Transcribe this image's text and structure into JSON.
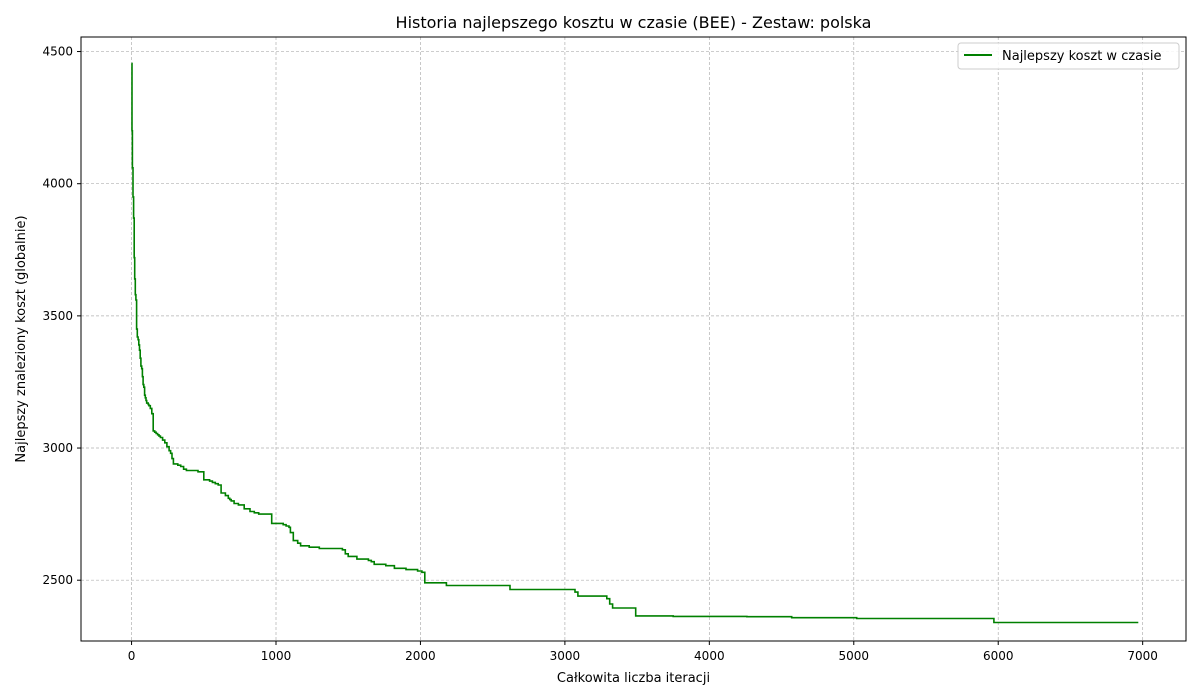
{
  "chart_data": {
    "type": "line",
    "title": "Historia najlepszego kosztu w czasie (BEE) - Zestaw: polska",
    "xlabel": "Całkowita liczba iteracji",
    "ylabel": "Najlepszy znaleziony koszt (globalnie)",
    "xlim": [
      -350,
      7300
    ],
    "ylim": [
      2270,
      4555
    ],
    "xticks": [
      0,
      1000,
      2000,
      3000,
      4000,
      5000,
      6000,
      7000
    ],
    "yticks": [
      2500,
      3000,
      3500,
      4000,
      4500
    ],
    "grid": true,
    "legend_position": "top-right",
    "series": [
      {
        "name": "Najlepszy koszt w czasie",
        "color": "#008000",
        "step": true,
        "x": [
          0,
          3,
          6,
          10,
          14,
          18,
          22,
          26,
          30,
          35,
          40,
          45,
          50,
          55,
          60,
          65,
          70,
          75,
          80,
          85,
          90,
          95,
          100,
          105,
          110,
          115,
          120,
          130,
          140,
          150,
          160,
          170,
          180,
          185,
          190,
          200,
          215,
          230,
          245,
          260,
          270,
          280,
          290,
          300,
          320,
          340,
          360,
          380,
          400,
          430,
          460,
          500,
          540,
          560,
          580,
          600,
          620,
          650,
          670,
          680,
          690,
          710,
          740,
          780,
          820,
          850,
          880,
          970,
          1050,
          1070,
          1090,
          1100,
          1120,
          1150,
          1170,
          1230,
          1300,
          1460,
          1480,
          1500,
          1560,
          1640,
          1660,
          1680,
          1760,
          1820,
          1900,
          1980,
          2010,
          2030,
          2180,
          2620,
          3070,
          3090,
          3290,
          3310,
          3330,
          3490,
          3750,
          4260,
          4570,
          5020,
          5970,
          6970
        ],
        "y": [
          4455,
          4200,
          4060,
          3950,
          3870,
          3720,
          3640,
          3580,
          3560,
          3450,
          3420,
          3410,
          3390,
          3370,
          3340,
          3310,
          3300,
          3270,
          3240,
          3230,
          3200,
          3190,
          3180,
          3170,
          3170,
          3165,
          3160,
          3150,
          3130,
          3065,
          3060,
          3055,
          3050,
          3050,
          3045,
          3040,
          3030,
          3020,
          3005,
          2990,
          2980,
          2960,
          2940,
          2940,
          2935,
          2930,
          2920,
          2915,
          2915,
          2915,
          2910,
          2880,
          2875,
          2870,
          2865,
          2860,
          2830,
          2820,
          2810,
          2805,
          2800,
          2790,
          2785,
          2770,
          2760,
          2755,
          2750,
          2715,
          2710,
          2705,
          2700,
          2680,
          2650,
          2640,
          2630,
          2625,
          2620,
          2615,
          2600,
          2590,
          2580,
          2575,
          2570,
          2560,
          2555,
          2545,
          2540,
          2535,
          2530,
          2490,
          2480,
          2465,
          2455,
          2440,
          2430,
          2410,
          2395,
          2365,
          2363,
          2362,
          2358,
          2355,
          2340,
          2340
        ]
      }
    ]
  }
}
